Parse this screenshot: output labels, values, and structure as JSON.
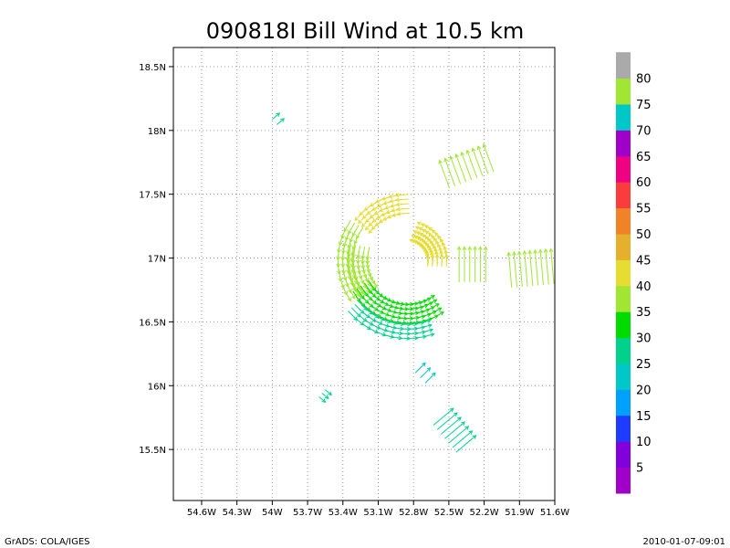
{
  "chart_data": {
    "type": "vector-field",
    "title": "090818I Bill Wind at 10.5 km",
    "x_ticks": [
      "54.6W",
      "54.3W",
      "54W",
      "53.7W",
      "53.4W",
      "53.1W",
      "52.8W",
      "52.5W",
      "52.2W",
      "51.9W",
      "51.6W"
    ],
    "x_tick_values": [
      -54.6,
      -54.3,
      -54.0,
      -53.7,
      -53.4,
      -53.1,
      -52.8,
      -52.5,
      -52.2,
      -51.9,
      -51.6
    ],
    "y_ticks": [
      "15.5N",
      "16N",
      "16.5N",
      "17N",
      "17.5N",
      "18N",
      "18.5N"
    ],
    "y_tick_values": [
      15.5,
      16.0,
      16.5,
      17.0,
      17.5,
      18.0,
      18.5
    ],
    "xlim": [
      -54.84,
      -51.6
    ],
    "ylim": [
      15.1,
      18.65
    ],
    "grid": true,
    "colorbar": {
      "labels": [
        "5",
        "10",
        "15",
        "20",
        "25",
        "30",
        "35",
        "40",
        "45",
        "50",
        "55",
        "60",
        "65",
        "70",
        "75",
        "80"
      ],
      "colors": [
        "#a000c8",
        "#8200dc",
        "#1e3cff",
        "#00a0ff",
        "#00c8c8",
        "#00d28c",
        "#00dc00",
        "#a0e632",
        "#e6dc32",
        "#e6af2d",
        "#f08228",
        "#fa3c3c",
        "#f00082",
        "#a000c8",
        "#00c8c8",
        "#a0e632",
        "#aaaaaa"
      ]
    },
    "wind_segments": [
      {
        "name": "western-arc",
        "center": [
          -52.85,
          16.98
        ],
        "radius_deg": 0.55,
        "angle_from": 150,
        "angle_to": 210,
        "speed": 38
      },
      {
        "name": "north-arc",
        "center": [
          -52.85,
          16.98
        ],
        "radius_deg": 0.48,
        "angle_from": 95,
        "angle_to": 140,
        "speed": 40
      },
      {
        "name": "inner-west-arc",
        "center": [
          -52.85,
          16.98
        ],
        "radius_deg": 0.42,
        "angle_from": 170,
        "angle_to": 215,
        "speed": 37
      },
      {
        "name": "southern-arc",
        "center": [
          -52.85,
          16.98
        ],
        "radius_deg": 0.45,
        "angle_from": 215,
        "angle_to": 300,
        "speed": 33
      },
      {
        "name": "outer-south-arc",
        "center": [
          -52.85,
          16.98
        ],
        "radius_deg": 0.62,
        "angle_from": 225,
        "angle_to": 285,
        "speed": 28
      },
      {
        "name": "east-arc",
        "center": [
          -52.85,
          16.98
        ],
        "radius_deg": 0.25,
        "angle_from": 0,
        "angle_to": 70,
        "speed": 44
      },
      {
        "name": "northeast-band",
        "center": [
          -52.35,
          17.72
        ],
        "speed": 38
      },
      {
        "name": "east-band",
        "center": [
          -52.3,
          16.95
        ],
        "speed": 38
      },
      {
        "name": "far-east-band",
        "center": [
          -51.8,
          16.92
        ],
        "speed": 35
      },
      {
        "name": "south-band",
        "center": [
          -52.45,
          15.65
        ],
        "speed": 25
      },
      {
        "name": "south-arrows",
        "center": [
          -52.7,
          16.1
        ],
        "speed": 24
      },
      {
        "name": "nw-arrows",
        "center": [
          -53.95,
          18.09
        ],
        "speed": 25
      },
      {
        "name": "sw-arrows",
        "center": [
          -53.55,
          15.92
        ],
        "speed": 25
      }
    ],
    "footer_left": "GrADS: COLA/IGES",
    "footer_right": "2010-01-07-09:01"
  }
}
